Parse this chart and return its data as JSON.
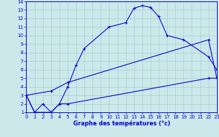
{
  "xlabel": "Graphe des températures (°c)",
  "bg_color": "#cce8ea",
  "line_color": "#0000cc",
  "grid_color": "#aacccc",
  "xlim": [
    0,
    23
  ],
  "ylim": [
    1,
    14
  ],
  "xticks": [
    0,
    1,
    2,
    3,
    4,
    5,
    6,
    7,
    8,
    9,
    10,
    11,
    12,
    13,
    14,
    15,
    16,
    17,
    18,
    19,
    20,
    21,
    22,
    23
  ],
  "yticks": [
    1,
    2,
    3,
    4,
    5,
    6,
    7,
    8,
    9,
    10,
    11,
    12,
    13,
    14
  ],
  "curve1_x": [
    0,
    1,
    2,
    3,
    4,
    5,
    6,
    7,
    10,
    12,
    13,
    14,
    15,
    16,
    17,
    19,
    22,
    23
  ],
  "curve1_y": [
    3,
    1,
    2,
    1,
    2,
    4,
    6.5,
    8.5,
    11.0,
    11.5,
    13.2,
    13.5,
    13.3,
    12.2,
    10.0,
    9.5,
    7.5,
    6.0
  ],
  "curve2_x": [
    0,
    3,
    5,
    22,
    23
  ],
  "curve2_y": [
    3,
    3.5,
    4.5,
    9.5,
    5.0
  ],
  "curve3_x": [
    0,
    1,
    3,
    4,
    5,
    22,
    23
  ],
  "curve3_y": [
    3,
    1,
    1,
    2,
    2,
    5.0,
    5.0
  ]
}
